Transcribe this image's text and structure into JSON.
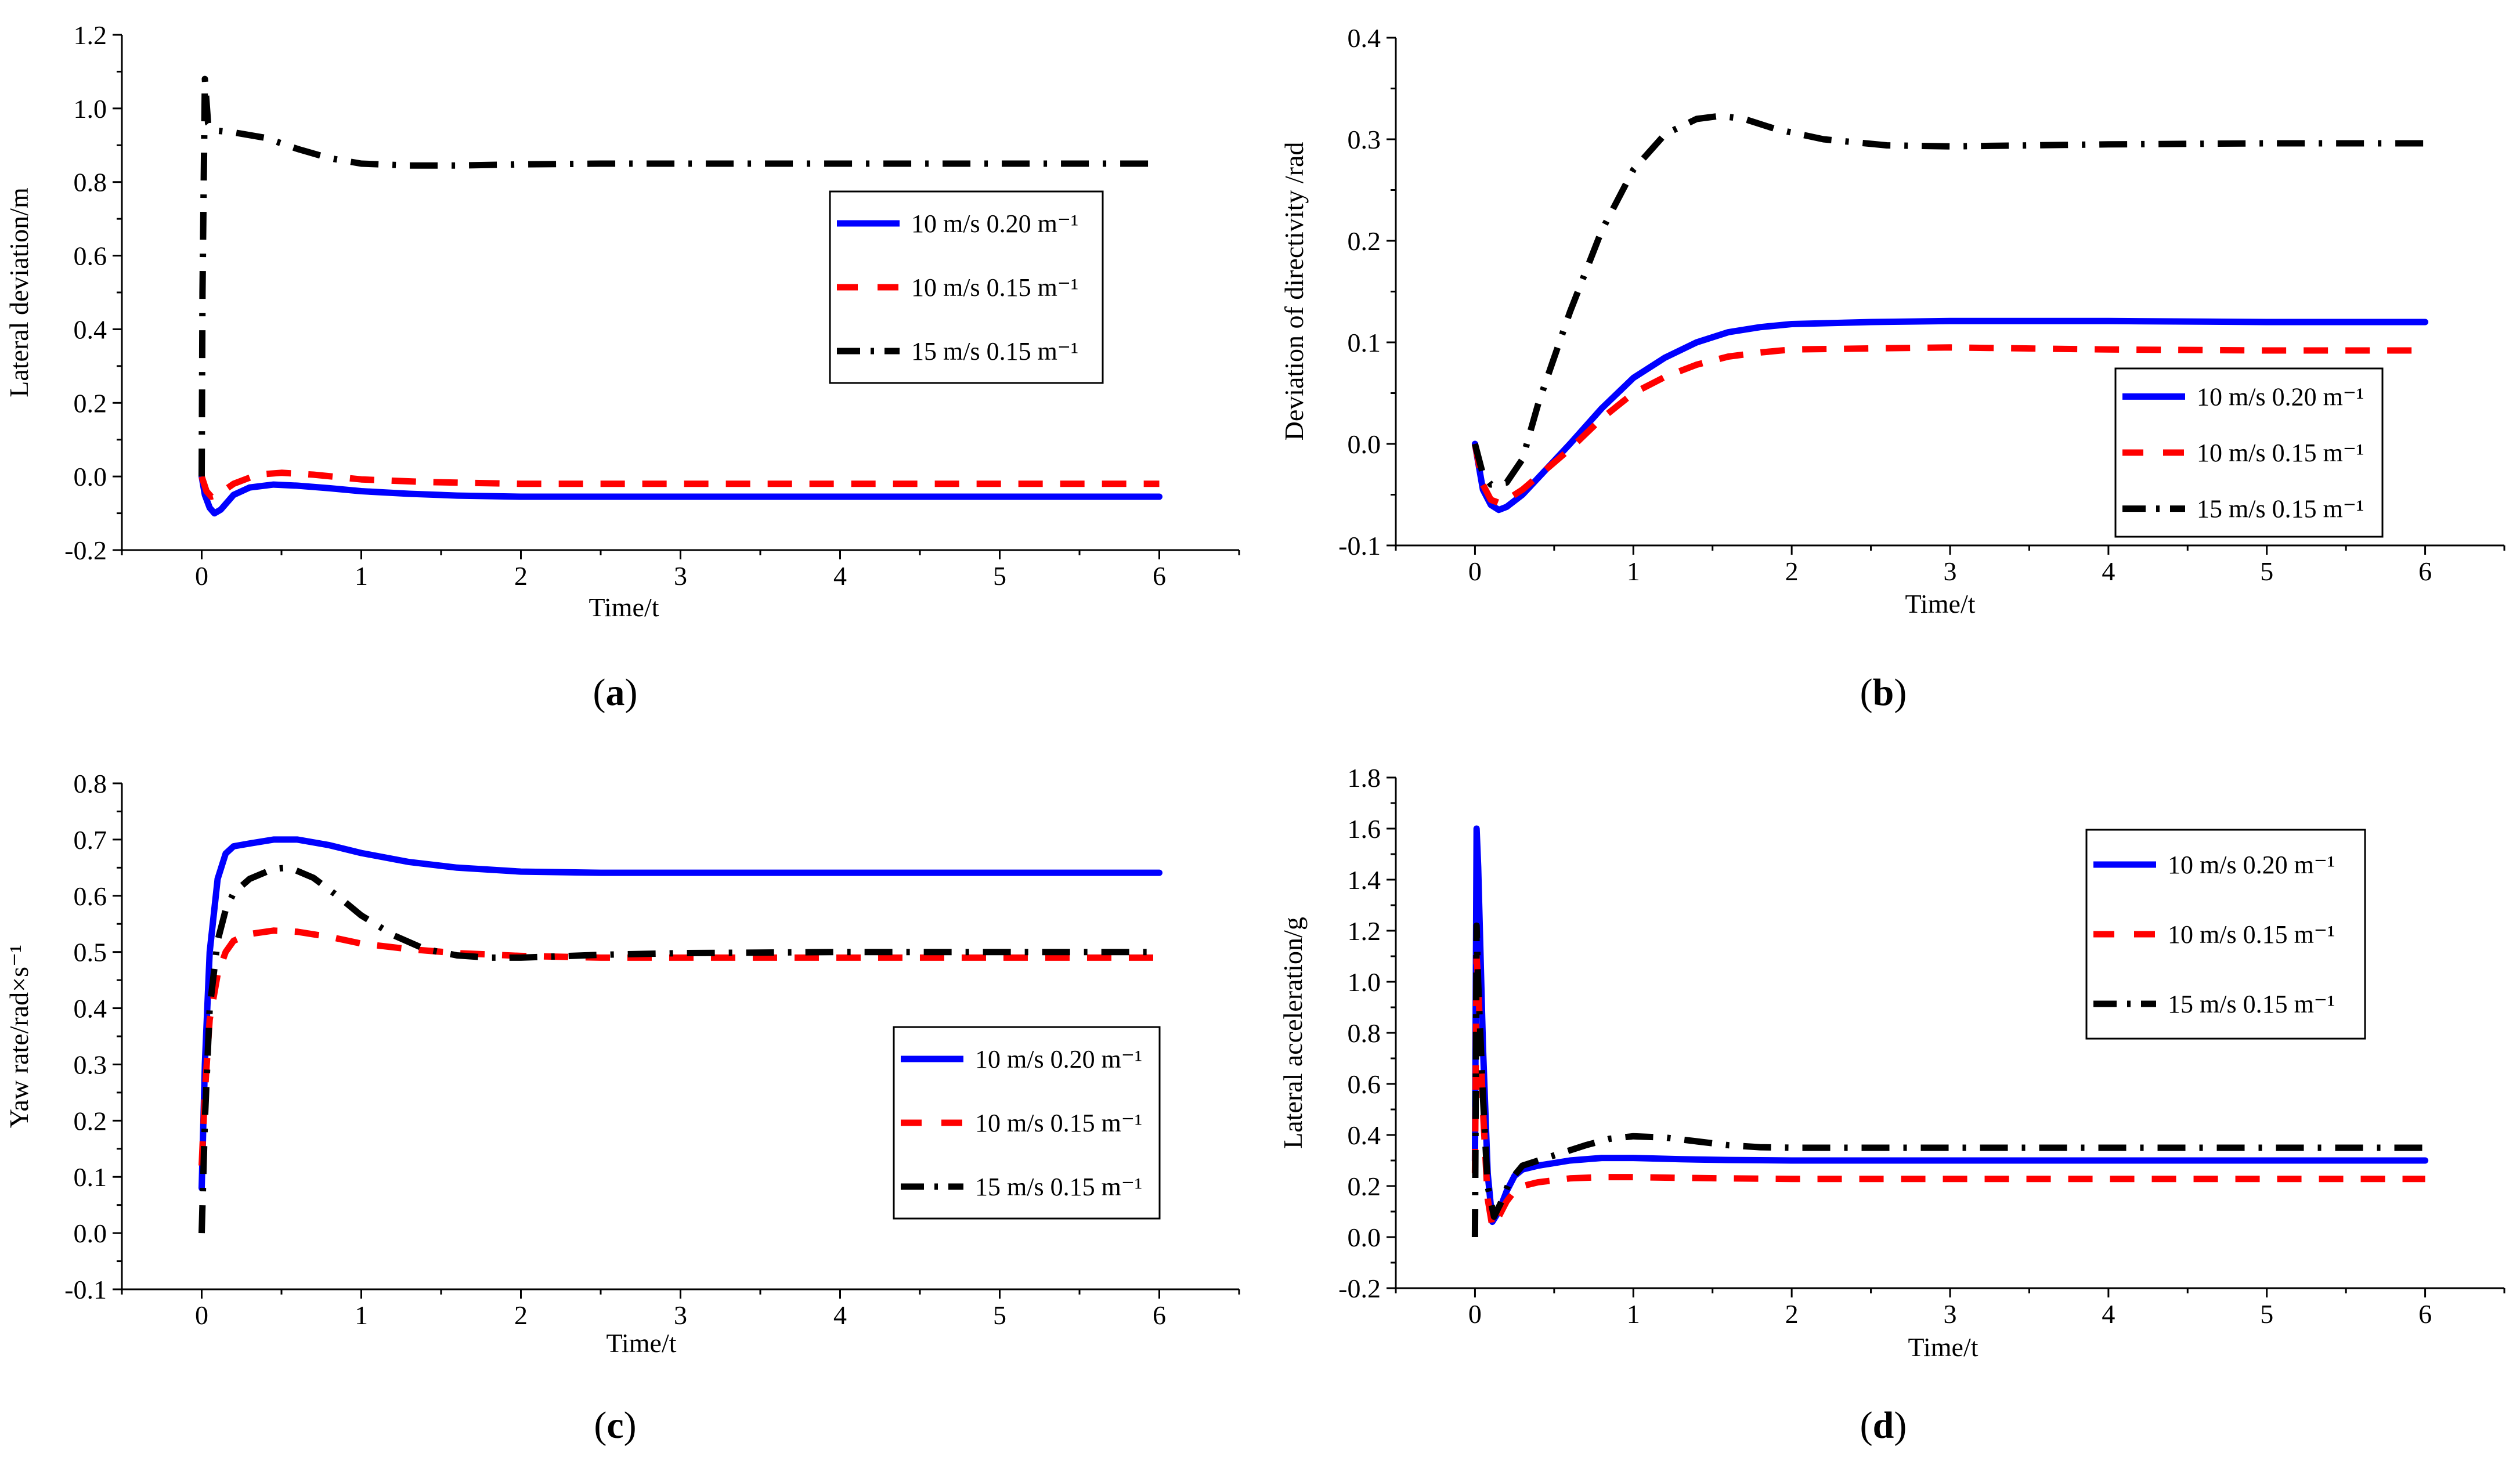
{
  "chart_data": [
    {
      "type": "line",
      "panel_label": [
        "(",
        "a",
        ")"
      ],
      "title": "",
      "xlabel": "Time/t",
      "ylabel": "Lateral deviation/m",
      "xlim": [
        -0.5,
        6.5
      ],
      "ylim": [
        -0.2,
        1.2
      ],
      "xticks": [
        0,
        1,
        2,
        3,
        4,
        5,
        6
      ],
      "yticks": [
        "-0.2",
        "0.0",
        "0.2",
        "0.4",
        "0.6",
        "0.8",
        "1.0",
        "1.2"
      ],
      "legend_position": "middle-right",
      "series": [
        {
          "name": "10 m/s 0.20 m⁻¹",
          "color": "#0000ff",
          "style": "solid",
          "x": [
            0,
            0.02,
            0.05,
            0.08,
            0.12,
            0.2,
            0.3,
            0.45,
            0.6,
            0.8,
            1.0,
            1.3,
            1.6,
            2.0,
            3.0,
            4.0,
            5.0,
            6.0
          ],
          "y": [
            0,
            -0.05,
            -0.085,
            -0.1,
            -0.09,
            -0.05,
            -0.03,
            -0.022,
            -0.025,
            -0.032,
            -0.04,
            -0.047,
            -0.052,
            -0.055,
            -0.055,
            -0.055,
            -0.055,
            -0.055
          ]
        },
        {
          "name": "10 m/s 0.15 m⁻¹",
          "color": "#ff0000",
          "style": "dashed",
          "x": [
            0,
            0.03,
            0.06,
            0.1,
            0.2,
            0.35,
            0.5,
            0.7,
            1.0,
            1.4,
            2.0,
            3.0,
            4.0,
            5.0,
            6.0
          ],
          "y": [
            0,
            -0.04,
            -0.055,
            -0.05,
            -0.02,
            0.005,
            0.01,
            0.005,
            -0.008,
            -0.015,
            -0.02,
            -0.02,
            -0.02,
            -0.02,
            -0.02
          ]
        },
        {
          "name": "15 m/s 0.15 m⁻¹",
          "color": "#000000",
          "style": "dashdot",
          "x": [
            0,
            0.005,
            0.02,
            0.04,
            0.08,
            0.2,
            0.4,
            0.6,
            0.8,
            1.0,
            1.3,
            1.6,
            2.0,
            2.5,
            3.0,
            4.0,
            5.0,
            6.0
          ],
          "y": [
            0,
            0.5,
            1.08,
            0.96,
            0.94,
            0.935,
            0.92,
            0.89,
            0.865,
            0.85,
            0.845,
            0.845,
            0.848,
            0.85,
            0.85,
            0.85,
            0.85,
            0.85
          ]
        }
      ]
    },
    {
      "type": "line",
      "panel_label": [
        "(",
        "b",
        ")"
      ],
      "title": "",
      "xlabel": "Time/t",
      "ylabel": "Deviation of directivity /rad",
      "xlim": [
        -0.5,
        6.5
      ],
      "ylim": [
        -0.1,
        0.4
      ],
      "xticks": [
        0,
        1,
        2,
        3,
        4,
        5,
        6
      ],
      "yticks": [
        "-0.1",
        "0.0",
        "0.1",
        "0.2",
        "0.3",
        "0.4"
      ],
      "legend_position": "lower-right",
      "series": [
        {
          "name": "10 m/s 0.20 m⁻¹",
          "color": "#0000ff",
          "style": "solid",
          "x": [
            0,
            0.05,
            0.1,
            0.15,
            0.2,
            0.3,
            0.45,
            0.6,
            0.8,
            1.0,
            1.2,
            1.4,
            1.6,
            1.8,
            2.0,
            2.5,
            3.0,
            4.0,
            5.0,
            6.0
          ],
          "y": [
            0,
            -0.045,
            -0.06,
            -0.065,
            -0.062,
            -0.05,
            -0.025,
            0.0,
            0.035,
            0.065,
            0.085,
            0.1,
            0.11,
            0.115,
            0.118,
            0.12,
            0.121,
            0.121,
            0.12,
            0.12
          ]
        },
        {
          "name": "10 m/s 0.15 m⁻¹",
          "color": "#ff0000",
          "style": "dashed",
          "x": [
            0,
            0.05,
            0.1,
            0.15,
            0.2,
            0.3,
            0.45,
            0.6,
            0.8,
            1.0,
            1.2,
            1.4,
            1.6,
            1.8,
            2.0,
            2.5,
            3.0,
            4.0,
            5.0,
            6.0
          ],
          "y": [
            0,
            -0.04,
            -0.055,
            -0.058,
            -0.055,
            -0.045,
            -0.025,
            -0.005,
            0.025,
            0.05,
            0.066,
            0.078,
            0.086,
            0.09,
            0.093,
            0.094,
            0.095,
            0.093,
            0.092,
            0.092
          ]
        },
        {
          "name": "15 m/s 0.15 m⁻¹",
          "color": "#000000",
          "style": "dashdot",
          "x": [
            0,
            0.05,
            0.1,
            0.2,
            0.3,
            0.4,
            0.6,
            0.8,
            1.0,
            1.2,
            1.4,
            1.55,
            1.7,
            1.9,
            2.2,
            2.6,
            3.0,
            4.0,
            5.0,
            6.0
          ],
          "y": [
            0,
            -0.03,
            -0.04,
            -0.038,
            -0.015,
            0.04,
            0.13,
            0.21,
            0.27,
            0.305,
            0.32,
            0.323,
            0.32,
            0.31,
            0.3,
            0.294,
            0.293,
            0.295,
            0.296,
            0.296
          ]
        }
      ]
    },
    {
      "type": "line",
      "panel_label": [
        "(",
        "c",
        ")"
      ],
      "title": "",
      "xlabel": "Time/t",
      "ylabel": "Yaw rate/rad×s⁻¹",
      "xlim": [
        -0.5,
        6.5
      ],
      "ylim": [
        -0.1,
        0.8
      ],
      "xticks": [
        0,
        1,
        2,
        3,
        4,
        5,
        6
      ],
      "yticks": [
        "-0.1",
        "0.0",
        "0.1",
        "0.2",
        "0.3",
        "0.4",
        "0.5",
        "0.6",
        "0.7",
        "0.8"
      ],
      "legend_position": "lower-right",
      "series": [
        {
          "name": "10 m/s 0.20 m⁻¹",
          "color": "#0000ff",
          "style": "solid",
          "x": [
            0,
            0.02,
            0.05,
            0.1,
            0.15,
            0.2,
            0.3,
            0.45,
            0.6,
            0.8,
            1.0,
            1.3,
            1.6,
            2.0,
            2.5,
            3.0,
            4.0,
            5.0,
            6.0
          ],
          "y": [
            0.08,
            0.3,
            0.5,
            0.63,
            0.675,
            0.688,
            0.693,
            0.7,
            0.7,
            0.69,
            0.676,
            0.66,
            0.65,
            0.643,
            0.641,
            0.641,
            0.641,
            0.641,
            0.641
          ]
        },
        {
          "name": "10 m/s 0.15 m⁻¹",
          "color": "#ff0000",
          "style": "dashed",
          "x": [
            0,
            0.02,
            0.05,
            0.1,
            0.15,
            0.2,
            0.3,
            0.45,
            0.6,
            0.8,
            1.0,
            1.3,
            1.6,
            2.0,
            2.5,
            3.0,
            4.0,
            5.0,
            6.0
          ],
          "y": [
            0.12,
            0.25,
            0.38,
            0.46,
            0.5,
            0.52,
            0.532,
            0.538,
            0.536,
            0.527,
            0.515,
            0.505,
            0.498,
            0.493,
            0.49,
            0.49,
            0.49,
            0.49,
            0.49
          ]
        },
        {
          "name": "15 m/s 0.15 m⁻¹",
          "color": "#000000",
          "style": "dashdot",
          "x": [
            0,
            0.02,
            0.05,
            0.1,
            0.15,
            0.2,
            0.3,
            0.45,
            0.55,
            0.7,
            0.85,
            1.0,
            1.2,
            1.4,
            1.6,
            1.8,
            2.0,
            2.5,
            3.0,
            4.0,
            5.0,
            6.0
          ],
          "y": [
            0,
            0.2,
            0.4,
            0.52,
            0.575,
            0.605,
            0.63,
            0.648,
            0.65,
            0.632,
            0.6,
            0.565,
            0.53,
            0.505,
            0.494,
            0.49,
            0.49,
            0.495,
            0.498,
            0.5,
            0.5,
            0.5
          ]
        }
      ]
    },
    {
      "type": "line",
      "panel_label": [
        "(",
        "d",
        ")"
      ],
      "title": "",
      "xlabel": "Time/t",
      "ylabel": "Lateral acceleration/g",
      "xlim": [
        -0.5,
        6.5
      ],
      "ylim": [
        -0.2,
        1.8
      ],
      "xticks": [
        0,
        1,
        2,
        3,
        4,
        5,
        6
      ],
      "yticks": [
        "-0.2",
        "0.0",
        "0.2",
        "0.4",
        "0.6",
        "0.8",
        "1.0",
        "1.2",
        "1.4",
        "1.6",
        "1.8"
      ],
      "legend_position": "top-right",
      "series": [
        {
          "name": "10 m/s 0.20 m⁻¹",
          "color": "#0000ff",
          "style": "solid",
          "x": [
            0,
            0.01,
            0.02,
            0.05,
            0.08,
            0.11,
            0.15,
            0.2,
            0.25,
            0.3,
            0.4,
            0.6,
            0.8,
            1.0,
            1.3,
            1.6,
            2.0,
            3.0,
            4.0,
            5.0,
            6.0
          ],
          "y": [
            0.3,
            1.6,
            1.45,
            0.75,
            0.25,
            0.06,
            0.1,
            0.18,
            0.24,
            0.265,
            0.28,
            0.3,
            0.31,
            0.31,
            0.305,
            0.302,
            0.3,
            0.3,
            0.3,
            0.3,
            0.3
          ]
        },
        {
          "name": "10 m/s 0.15 m⁻¹",
          "color": "#ff0000",
          "style": "dashed",
          "x": [
            0,
            0.01,
            0.02,
            0.05,
            0.08,
            0.11,
            0.15,
            0.2,
            0.25,
            0.3,
            0.4,
            0.6,
            0.8,
            1.0,
            1.3,
            1.6,
            2.0,
            3.0,
            4.0,
            5.0,
            6.0
          ],
          "y": [
            0.25,
            1.1,
            1.0,
            0.5,
            0.15,
            0.04,
            0.08,
            0.14,
            0.18,
            0.2,
            0.215,
            0.23,
            0.235,
            0.235,
            0.232,
            0.23,
            0.228,
            0.228,
            0.228,
            0.228,
            0.228
          ]
        },
        {
          "name": "15 m/s 0.15 m⁻¹",
          "color": "#000000",
          "style": "dashdot",
          "x": [
            0,
            0.01,
            0.02,
            0.05,
            0.08,
            0.12,
            0.16,
            0.22,
            0.3,
            0.4,
            0.55,
            0.7,
            0.85,
            1.0,
            1.2,
            1.4,
            1.6,
            1.8,
            2.0,
            3.0,
            4.0,
            5.0,
            6.0
          ],
          "y": [
            0,
            1.22,
            1.0,
            0.55,
            0.2,
            0.08,
            0.13,
            0.22,
            0.28,
            0.3,
            0.33,
            0.36,
            0.385,
            0.395,
            0.39,
            0.375,
            0.36,
            0.352,
            0.35,
            0.35,
            0.35,
            0.35,
            0.35
          ]
        }
      ]
    }
  ]
}
